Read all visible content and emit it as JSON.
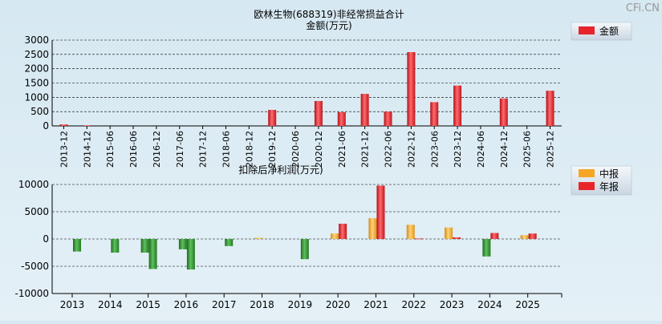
{
  "watermark": "CFi.CN",
  "colors": {
    "red": "#e8242b",
    "orange": "#f5a623",
    "green": "#2e8b2e",
    "grid": "#000000",
    "background": "#d6e8f2"
  },
  "chart_data": [
    {
      "type": "bar",
      "title": "欧林生物(688319)非经常损益合计",
      "ylabel": "金额(万元)",
      "legend": {
        "position": "top-right",
        "items": [
          {
            "name": "金额",
            "color": "#e8242b"
          }
        ]
      },
      "ylim": [
        0,
        3000
      ],
      "yticks": [
        0,
        500,
        1000,
        1500,
        2000,
        2500,
        3000
      ],
      "grid": true,
      "categories": [
        "2013-12",
        "2014-12",
        "2015-06",
        "2016-06",
        "2016-12",
        "2017-06",
        "2017-12",
        "2018-06",
        "2018-12",
        "2019-12",
        "2020-06",
        "2020-12",
        "2021-06",
        "2021-12",
        "2022-06",
        "2022-12",
        "2023-06",
        "2023-12",
        "2024-06",
        "2024-12",
        "2025-06",
        "2025-12"
      ],
      "series": [
        {
          "name": "金额",
          "values": [
            50,
            20,
            0,
            0,
            0,
            0,
            0,
            0,
            0,
            560,
            0,
            870,
            480,
            1120,
            500,
            2580,
            830,
            1410,
            0,
            960,
            0,
            1230
          ]
        }
      ]
    },
    {
      "type": "bar",
      "title": "扣除后净利润(万元)",
      "legend": {
        "position": "top-right",
        "items": [
          {
            "name": "中报",
            "color": "#f5a623"
          },
          {
            "name": "年报",
            "color": "#e8242b"
          }
        ]
      },
      "ylim": [
        -10000,
        10000
      ],
      "yticks": [
        -10000,
        -5000,
        0,
        5000,
        10000
      ],
      "grid": true,
      "categories": [
        "2013",
        "2014",
        "2015",
        "2016",
        "2017",
        "2018",
        "2019",
        "2020",
        "2021",
        "2022",
        "2023",
        "2024",
        "2025"
      ],
      "series": [
        {
          "name": "中报",
          "values": [
            null,
            null,
            -2500,
            -1900,
            null,
            200,
            null,
            1000,
            3800,
            2600,
            2100,
            -3200,
            700
          ]
        },
        {
          "name": "年报",
          "values": [
            -2300,
            -2500,
            -5500,
            -5600,
            -1300,
            null,
            -3700,
            2800,
            9800,
            100,
            300,
            1100,
            1000
          ]
        }
      ]
    }
  ]
}
